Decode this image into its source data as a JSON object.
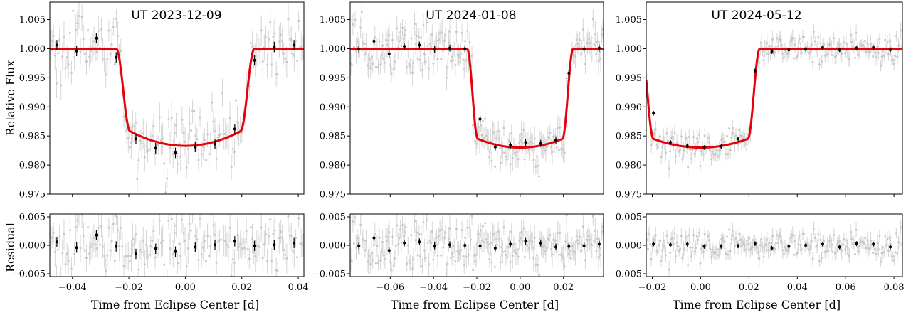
{
  "figure": {
    "ylabel_top": "Relative Flux",
    "ylabel_bottom": "Residual",
    "xlabel": "Time from Eclipse Center [d]"
  },
  "chart_data": [
    {
      "type": "scatter",
      "title": "UT 2023-12-09",
      "xlim": [
        -0.048,
        0.042
      ],
      "xticks": [
        -0.04,
        -0.02,
        0.0,
        0.02,
        0.04
      ],
      "xticklabels": [
        "−0.04",
        "−0.02",
        "0.00",
        "0.02",
        "0.04"
      ],
      "flux": {
        "ylim": [
          0.975,
          1.008
        ],
        "yticks": [
          0.975,
          0.98,
          0.985,
          0.99,
          0.995,
          1.0,
          1.005
        ],
        "yticklabels": [
          "0.975",
          "0.980",
          "0.985",
          "0.990",
          "0.995",
          "1.000",
          "1.005"
        ],
        "model": {
          "t1": -0.0245,
          "t2": -0.0195,
          "t3": 0.0195,
          "t4": 0.0245,
          "depth": 0.0167,
          "curve": 0.0025,
          "color": "#e8000b"
        },
        "binned": [
          {
            "x": -0.0455,
            "y": 1.0006,
            "err": 0.0009
          },
          {
            "x": -0.0385,
            "y": 0.9996,
            "err": 0.0009
          },
          {
            "x": -0.0315,
            "y": 1.0018,
            "err": 0.0009
          },
          {
            "x": -0.0245,
            "y": 0.9985,
            "err": 0.0009
          },
          {
            "x": -0.0175,
            "y": 0.9845,
            "err": 0.0009
          },
          {
            "x": -0.0105,
            "y": 0.9829,
            "err": 0.0009
          },
          {
            "x": -0.0035,
            "y": 0.9821,
            "err": 0.0009
          },
          {
            "x": 0.0035,
            "y": 0.9831,
            "err": 0.0009
          },
          {
            "x": 0.0105,
            "y": 0.9836,
            "err": 0.0009
          },
          {
            "x": 0.0175,
            "y": 0.9862,
            "err": 0.0009
          },
          {
            "x": 0.0245,
            "y": 0.998,
            "err": 0.0009
          },
          {
            "x": 0.0315,
            "y": 1.0003,
            "err": 0.0009
          },
          {
            "x": 0.0385,
            "y": 1.0006,
            "err": 0.0009
          }
        ]
      },
      "residual": {
        "ylim": [
          -0.0055,
          0.0055
        ],
        "yticks": [
          -0.005,
          0.0,
          0.005
        ],
        "yticklabels": [
          "−0.005",
          "0.000",
          "0.005"
        ],
        "binned": [
          {
            "x": -0.0455,
            "y": 0.0006,
            "err": 0.0009
          },
          {
            "x": -0.0385,
            "y": -0.0004,
            "err": 0.0009
          },
          {
            "x": -0.0315,
            "y": 0.0018,
            "err": 0.0009
          },
          {
            "x": -0.0245,
            "y": -0.0002,
            "err": 0.0009
          },
          {
            "x": -0.0175,
            "y": -0.0015,
            "err": 0.0009
          },
          {
            "x": -0.0105,
            "y": -0.0006,
            "err": 0.0009
          },
          {
            "x": -0.0035,
            "y": -0.0011,
            "err": 0.0009
          },
          {
            "x": 0.0035,
            "y": -0.0003,
            "err": 0.0009
          },
          {
            "x": 0.0105,
            "y": 0.0001,
            "err": 0.0009
          },
          {
            "x": 0.0175,
            "y": 0.0007,
            "err": 0.0009
          },
          {
            "x": 0.0245,
            "y": -0.0001,
            "err": 0.0009
          },
          {
            "x": 0.0315,
            "y": 0.0001,
            "err": 0.0009
          },
          {
            "x": 0.0385,
            "y": 0.0004,
            "err": 0.0009
          }
        ]
      },
      "raw": {
        "count": 170,
        "scatter": 0.0028,
        "err": 0.0022
      }
    },
    {
      "type": "scatter",
      "title": "UT 2024-01-08",
      "xlim": [
        -0.0785,
        0.0385
      ],
      "xticks": [
        -0.06,
        -0.04,
        -0.02,
        0.0,
        0.02
      ],
      "xticklabels": [
        "−0.06",
        "−0.04",
        "−0.02",
        "0.00",
        "0.02"
      ],
      "flux": {
        "ylim": [
          0.975,
          1.008
        ],
        "yticks": [
          0.975,
          0.98,
          0.985,
          0.99,
          0.995,
          1.0,
          1.005
        ],
        "yticklabels": [
          "0.975",
          "0.980",
          "0.985",
          "0.990",
          "0.995",
          "1.000",
          "1.005"
        ],
        "model": {
          "t1": -0.0245,
          "t2": -0.0195,
          "t3": 0.0195,
          "t4": 0.0245,
          "depth": 0.017,
          "curve": 0.0015,
          "color": "#e8000b"
        },
        "binned": [
          {
            "x": -0.0745,
            "y": 0.9999,
            "err": 0.0006
          },
          {
            "x": -0.0675,
            "y": 1.0013,
            "err": 0.0006
          },
          {
            "x": -0.0605,
            "y": 0.9991,
            "err": 0.0006
          },
          {
            "x": -0.0535,
            "y": 1.0004,
            "err": 0.0006
          },
          {
            "x": -0.0465,
            "y": 1.0006,
            "err": 0.0006
          },
          {
            "x": -0.0395,
            "y": 0.9999,
            "err": 0.0006
          },
          {
            "x": -0.0325,
            "y": 1.0001,
            "err": 0.0006
          },
          {
            "x": -0.0255,
            "y": 1.0,
            "err": 0.0006
          },
          {
            "x": -0.0185,
            "y": 0.9879,
            "err": 0.0006
          },
          {
            "x": -0.0115,
            "y": 0.9831,
            "err": 0.0006
          },
          {
            "x": -0.0045,
            "y": 0.9834,
            "err": 0.0006
          },
          {
            "x": 0.0025,
            "y": 0.9839,
            "err": 0.0006
          },
          {
            "x": 0.0095,
            "y": 0.9837,
            "err": 0.0006
          },
          {
            "x": 0.0165,
            "y": 0.9843,
            "err": 0.0006
          },
          {
            "x": 0.0225,
            "y": 0.9958,
            "err": 0.0006
          },
          {
            "x": 0.0295,
            "y": 0.9999,
            "err": 0.0006
          },
          {
            "x": 0.0365,
            "y": 1.0001,
            "err": 0.0006
          }
        ]
      },
      "residual": {
        "ylim": [
          -0.0055,
          0.0055
        ],
        "yticks": [
          -0.005,
          0.0,
          0.005
        ],
        "yticklabels": [
          "−0.005",
          "0.000",
          "0.005"
        ],
        "binned": [
          {
            "x": -0.0745,
            "y": -0.0001,
            "err": 0.0006
          },
          {
            "x": -0.0675,
            "y": 0.0013,
            "err": 0.0006
          },
          {
            "x": -0.0605,
            "y": -0.0009,
            "err": 0.0006
          },
          {
            "x": -0.0535,
            "y": 0.0004,
            "err": 0.0006
          },
          {
            "x": -0.0465,
            "y": 0.0006,
            "err": 0.0006
          },
          {
            "x": -0.0395,
            "y": -0.0001,
            "err": 0.0006
          },
          {
            "x": -0.0325,
            "y": 0.0001,
            "err": 0.0006
          },
          {
            "x": -0.0255,
            "y": 0.0,
            "err": 0.0006
          },
          {
            "x": -0.0185,
            "y": -0.0001,
            "err": 0.0006
          },
          {
            "x": -0.0115,
            "y": -0.0005,
            "err": 0.0006
          },
          {
            "x": -0.0045,
            "y": 0.0002,
            "err": 0.0006
          },
          {
            "x": 0.0025,
            "y": 0.0007,
            "err": 0.0006
          },
          {
            "x": 0.0095,
            "y": 0.0004,
            "err": 0.0006
          },
          {
            "x": 0.0165,
            "y": -0.0003,
            "err": 0.0006
          },
          {
            "x": 0.0225,
            "y": -0.0002,
            "err": 0.0006
          },
          {
            "x": 0.0295,
            "y": -0.0001,
            "err": 0.0006
          },
          {
            "x": 0.0365,
            "y": 0.0002,
            "err": 0.0006
          }
        ]
      },
      "raw": {
        "count": 230,
        "scatter": 0.0022,
        "err": 0.0018
      }
    },
    {
      "type": "scatter",
      "title": "UT 2024-05-12",
      "xlim": [
        -0.0225,
        0.0835
      ],
      "xticks": [
        -0.02,
        0.0,
        0.02,
        0.04,
        0.06,
        0.08
      ],
      "xticklabels": [
        "−0.02",
        "0.00",
        "0.02",
        "0.04",
        "0.06",
        "0.08"
      ],
      "flux": {
        "ylim": [
          0.975,
          1.008
        ],
        "yticks": [
          0.975,
          0.98,
          0.985,
          0.99,
          0.995,
          1.0,
          1.005
        ],
        "yticklabels": [
          "0.975",
          "0.980",
          "0.985",
          "0.990",
          "0.995",
          "1.000",
          "1.005"
        ],
        "model": {
          "t1": -0.0245,
          "t2": -0.0195,
          "t3": 0.0195,
          "t4": 0.0245,
          "depth": 0.017,
          "curve": 0.0015,
          "color": "#e8000b"
        },
        "binned": [
          {
            "x": -0.0195,
            "y": 0.9889,
            "err": 0.0004
          },
          {
            "x": -0.0125,
            "y": 0.9839,
            "err": 0.0004
          },
          {
            "x": -0.0055,
            "y": 0.9833,
            "err": 0.0004
          },
          {
            "x": 0.0015,
            "y": 0.983,
            "err": 0.0004
          },
          {
            "x": 0.0085,
            "y": 0.9832,
            "err": 0.0004
          },
          {
            "x": 0.0155,
            "y": 0.9845,
            "err": 0.0004
          },
          {
            "x": 0.0225,
            "y": 0.9962,
            "err": 0.0004
          },
          {
            "x": 0.0295,
            "y": 0.9995,
            "err": 0.0004
          },
          {
            "x": 0.0365,
            "y": 0.9998,
            "err": 0.0004
          },
          {
            "x": 0.0435,
            "y": 0.9999,
            "err": 0.0004
          },
          {
            "x": 0.0505,
            "y": 1.0002,
            "err": 0.0004
          },
          {
            "x": 0.0575,
            "y": 0.9998,
            "err": 0.0004
          },
          {
            "x": 0.0645,
            "y": 1.0001,
            "err": 0.0004
          },
          {
            "x": 0.0715,
            "y": 1.0002,
            "err": 0.0004
          },
          {
            "x": 0.0785,
            "y": 0.9998,
            "err": 0.0004
          }
        ]
      },
      "residual": {
        "ylim": [
          -0.0055,
          0.0055
        ],
        "yticks": [
          -0.005,
          0.0,
          0.005
        ],
        "yticklabels": [
          "−0.005",
          "0.000",
          "0.005"
        ],
        "binned": [
          {
            "x": -0.0195,
            "y": 0.0002,
            "err": 0.0004
          },
          {
            "x": -0.0125,
            "y": 0.0001,
            "err": 0.0004
          },
          {
            "x": -0.0055,
            "y": 0.0002,
            "err": 0.0004
          },
          {
            "x": 0.0015,
            "y": -0.0002,
            "err": 0.0004
          },
          {
            "x": 0.0085,
            "y": -0.0002,
            "err": 0.0004
          },
          {
            "x": 0.0155,
            "y": -0.0001,
            "err": 0.0004
          },
          {
            "x": 0.0225,
            "y": 0.0003,
            "err": 0.0004
          },
          {
            "x": 0.0295,
            "y": -0.0005,
            "err": 0.0004
          },
          {
            "x": 0.0365,
            "y": -0.0002,
            "err": 0.0004
          },
          {
            "x": 0.0435,
            "y": 0.0,
            "err": 0.0004
          },
          {
            "x": 0.0505,
            "y": 0.0002,
            "err": 0.0004
          },
          {
            "x": 0.0575,
            "y": -0.0003,
            "err": 0.0004
          },
          {
            "x": 0.0645,
            "y": 0.0003,
            "err": 0.0004
          },
          {
            "x": 0.0715,
            "y": 0.0002,
            "err": 0.0004
          },
          {
            "x": 0.0785,
            "y": -0.0003,
            "err": 0.0004
          }
        ]
      },
      "raw": {
        "count": 230,
        "scatter": 0.0012,
        "err": 0.0012
      }
    }
  ]
}
